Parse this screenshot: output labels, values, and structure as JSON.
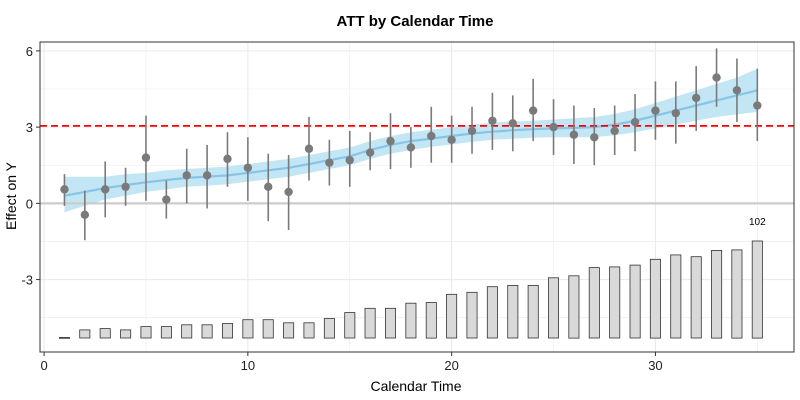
{
  "chart_data": {
    "type": "scatter",
    "title": "ATT by Calendar Time",
    "xlabel": "Calendar Time",
    "ylabel": "Effect on Y",
    "xlim": [
      -0.2,
      36.8
    ],
    "ylim": [
      -5.85,
      6.35
    ],
    "x_ticks": [
      0,
      10,
      20,
      30
    ],
    "y_ticks": [
      -3,
      0,
      3,
      6
    ],
    "x_tick_labels": [
      "0",
      "10",
      "20",
      "30"
    ],
    "y_tick_labels": [
      "-3",
      "0",
      "3",
      "6"
    ],
    "grid": true,
    "average_effect_line": 3.05,
    "zero_line": 0,
    "colors": {
      "point": "#7a7a7a",
      "error_bar": "#7a7a7a",
      "smooth_line": "#87c4e8",
      "ribbon": "#bde3f3",
      "average_line": "#ff0000",
      "zero_line": "#cccccc",
      "bar_fill": "#d9d9d9",
      "bar_stroke": "#333333",
      "grid": "#ebebeb",
      "panel_border": "#333333"
    },
    "points": [
      {
        "x": 1,
        "y": 0.55,
        "lower": -0.1,
        "upper": 1.15
      },
      {
        "x": 2,
        "y": -0.45,
        "lower": -1.45,
        "upper": 0.5
      },
      {
        "x": 3,
        "y": 0.55,
        "lower": -0.55,
        "upper": 1.65
      },
      {
        "x": 4,
        "y": 0.65,
        "lower": -0.1,
        "upper": 1.4
      },
      {
        "x": 5,
        "y": 1.8,
        "lower": 0.1,
        "upper": 3.45
      },
      {
        "x": 6,
        "y": 0.15,
        "lower": -0.6,
        "upper": 0.9
      },
      {
        "x": 7,
        "y": 1.1,
        "lower": 0.0,
        "upper": 2.15
      },
      {
        "x": 8,
        "y": 1.1,
        "lower": -0.2,
        "upper": 2.3
      },
      {
        "x": 9,
        "y": 1.75,
        "lower": 0.65,
        "upper": 2.8
      },
      {
        "x": 10,
        "y": 1.4,
        "lower": 0.1,
        "upper": 2.6
      },
      {
        "x": 11,
        "y": 0.65,
        "lower": -0.7,
        "upper": 1.95
      },
      {
        "x": 12,
        "y": 0.45,
        "lower": -1.05,
        "upper": 1.9
      },
      {
        "x": 13,
        "y": 2.15,
        "lower": 0.9,
        "upper": 3.4
      },
      {
        "x": 14,
        "y": 1.6,
        "lower": 0.7,
        "upper": 2.5
      },
      {
        "x": 15,
        "y": 1.7,
        "lower": 0.65,
        "upper": 2.85
      },
      {
        "x": 16,
        "y": 2.0,
        "lower": 1.3,
        "upper": 2.8
      },
      {
        "x": 17,
        "y": 2.45,
        "lower": 1.35,
        "upper": 3.55
      },
      {
        "x": 18,
        "y": 2.2,
        "lower": 1.4,
        "upper": 3.0
      },
      {
        "x": 19,
        "y": 2.65,
        "lower": 1.6,
        "upper": 3.8
      },
      {
        "x": 20,
        "y": 2.5,
        "lower": 1.6,
        "upper": 3.45
      },
      {
        "x": 21,
        "y": 2.85,
        "lower": 1.95,
        "upper": 3.8
      },
      {
        "x": 22,
        "y": 3.25,
        "lower": 2.1,
        "upper": 4.35
      },
      {
        "x": 23,
        "y": 3.15,
        "lower": 2.05,
        "upper": 4.25
      },
      {
        "x": 24,
        "y": 3.65,
        "lower": 2.45,
        "upper": 4.9
      },
      {
        "x": 25,
        "y": 3.0,
        "lower": 1.9,
        "upper": 4.1
      },
      {
        "x": 26,
        "y": 2.7,
        "lower": 1.55,
        "upper": 3.85
      },
      {
        "x": 27,
        "y": 2.6,
        "lower": 1.5,
        "upper": 3.75
      },
      {
        "x": 28,
        "y": 2.85,
        "lower": 1.9,
        "upper": 3.85
      },
      {
        "x": 29,
        "y": 3.2,
        "lower": 2.05,
        "upper": 4.3
      },
      {
        "x": 30,
        "y": 3.65,
        "lower": 2.5,
        "upper": 4.8
      },
      {
        "x": 31,
        "y": 3.55,
        "lower": 2.35,
        "upper": 4.8
      },
      {
        "x": 32,
        "y": 4.15,
        "lower": 2.85,
        "upper": 5.4
      },
      {
        "x": 33,
        "y": 4.95,
        "lower": 3.8,
        "upper": 6.1
      },
      {
        "x": 34,
        "y": 4.45,
        "lower": 3.2,
        "upper": 5.7
      },
      {
        "x": 35,
        "y": 3.85,
        "lower": 2.45,
        "upper": 5.3
      }
    ],
    "smooth_fit": {
      "x": [
        1,
        2,
        3,
        4,
        5,
        6,
        7,
        8,
        9,
        10,
        11,
        12,
        13,
        14,
        15,
        16,
        17,
        18,
        19,
        20,
        21,
        22,
        23,
        24,
        25,
        26,
        27,
        28,
        29,
        30,
        31,
        32,
        33,
        34,
        35
      ],
      "y": [
        0.3,
        0.45,
        0.6,
        0.72,
        0.83,
        0.92,
        1.0,
        1.05,
        1.1,
        1.2,
        1.3,
        1.4,
        1.55,
        1.7,
        1.85,
        2.1,
        2.3,
        2.45,
        2.55,
        2.65,
        2.75,
        2.82,
        2.88,
        2.92,
        2.95,
        2.97,
        3.0,
        3.1,
        3.25,
        3.45,
        3.65,
        3.85,
        4.05,
        4.25,
        4.45
      ],
      "lower": [
        -0.35,
        -0.1,
        0.15,
        0.3,
        0.45,
        0.55,
        0.65,
        0.7,
        0.75,
        0.85,
        0.95,
        1.05,
        1.2,
        1.35,
        1.5,
        1.75,
        1.95,
        2.1,
        2.22,
        2.32,
        2.42,
        2.5,
        2.55,
        2.58,
        2.6,
        2.6,
        2.6,
        2.68,
        2.8,
        2.95,
        3.1,
        3.25,
        3.4,
        3.5,
        3.6
      ],
      "upper": [
        1.05,
        1.05,
        1.05,
        1.15,
        1.2,
        1.3,
        1.35,
        1.4,
        1.45,
        1.55,
        1.65,
        1.75,
        1.9,
        2.05,
        2.2,
        2.45,
        2.65,
        2.8,
        2.9,
        3.0,
        3.1,
        3.18,
        3.22,
        3.25,
        3.3,
        3.35,
        3.4,
        3.52,
        3.7,
        3.95,
        4.2,
        4.45,
        4.7,
        4.95,
        5.3
      ]
    },
    "count_bars": {
      "x": [
        1,
        2,
        3,
        4,
        5,
        6,
        7,
        8,
        9,
        10,
        11,
        12,
        13,
        14,
        15,
        16,
        17,
        18,
        19,
        20,
        21,
        22,
        23,
        24,
        25,
        26,
        27,
        28,
        29,
        30,
        31,
        32,
        33,
        34,
        35
      ],
      "top": [
        -5.28,
        -4.98,
        -4.93,
        -4.98,
        -4.85,
        -4.85,
        -4.78,
        -4.78,
        -4.73,
        -4.58,
        -4.58,
        -4.7,
        -4.7,
        -4.53,
        -4.3,
        -4.13,
        -4.13,
        -3.93,
        -3.9,
        -3.58,
        -3.5,
        -3.28,
        -3.23,
        -3.23,
        -2.93,
        -2.85,
        -2.53,
        -2.5,
        -2.43,
        -2.2,
        -2.03,
        -2.1,
        -1.85,
        -1.83,
        -1.48
      ],
      "base": -5.3,
      "max_label": "102"
    }
  }
}
